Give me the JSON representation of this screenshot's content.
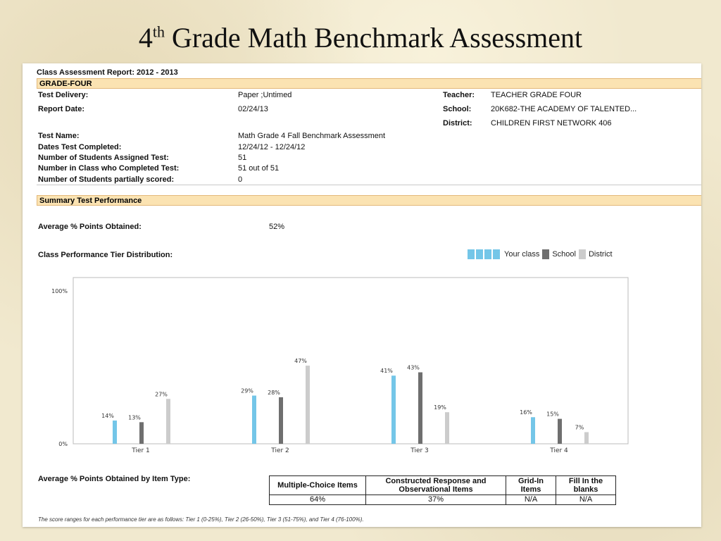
{
  "slide_title": {
    "prefix": "4",
    "sup": "th",
    "rest": " Grade Math Benchmark Assessment"
  },
  "report": {
    "title": "Class Assessment Report: 2012 - 2013",
    "grade": "GRADE-FOUR",
    "left_fields": [
      {
        "label": "Test Delivery:",
        "value": "Paper ;Untimed"
      },
      {
        "label": "Report Date:",
        "value": "02/24/13"
      },
      {
        "label": "Test Name:",
        "value": "Math Grade 4 Fall Benchmark Assessment"
      },
      {
        "label": "Dates Test Completed:",
        "value": "12/24/12 - 12/24/12"
      },
      {
        "label": "Number of Students Assigned Test:",
        "value": "51"
      },
      {
        "label": "Number in Class who Completed Test:",
        "value": "51 out of 51"
      },
      {
        "label": "Number of Students partially scored:",
        "value": "0"
      }
    ],
    "right_fields": [
      {
        "label": "Teacher:",
        "value": "TEACHER GRADE FOUR"
      },
      {
        "label": "School:",
        "value": "20K682-THE ACADEMY OF TALENTED..."
      },
      {
        "label": "District:",
        "value": "CHILDREN FIRST NETWORK 406"
      }
    ]
  },
  "summary": {
    "header": "Summary Test Performance",
    "avg_label": "Average % Points Obtained:",
    "avg_value": "52%",
    "dist_label": "Class Performance Tier Distribution:"
  },
  "legend": [
    {
      "name": "Your class",
      "color": "#74c6e8"
    },
    {
      "name": "School",
      "color": "#6f6f6f"
    },
    {
      "name": "District",
      "color": "#cccccc"
    }
  ],
  "chart_data": {
    "type": "bar",
    "categories": [
      "Tier 1",
      "Tier 2",
      "Tier 3",
      "Tier 4"
    ],
    "series": [
      {
        "name": "Your class",
        "color": "#74c6e8",
        "values": [
          14,
          29,
          41,
          16
        ]
      },
      {
        "name": "School",
        "color": "#6f6f6f",
        "values": [
          13,
          28,
          43,
          15
        ]
      },
      {
        "name": "District",
        "color": "#cccccc",
        "values": [
          27,
          47,
          19,
          7
        ]
      }
    ],
    "ylim": [
      0,
      100
    ],
    "y_ticks": [
      "0%",
      "100%"
    ],
    "value_suffix": "%",
    "legend_position": "top-right"
  },
  "item_types": {
    "label": "Average % Points Obtained by Item Type:",
    "headers": [
      "Multiple-Choice Items",
      "Constructed Response and Observational Items",
      "Grid-In Items",
      "Fill In the blanks"
    ],
    "values": [
      "64%",
      "37%",
      "N/A",
      "N/A"
    ]
  },
  "footnote": "The score ranges for each performance tier are as follows: Tier 1 (0-25%), Tier 2 (26-50%), Tier 3 (51-75%), and Tier 4 (76-100%)."
}
